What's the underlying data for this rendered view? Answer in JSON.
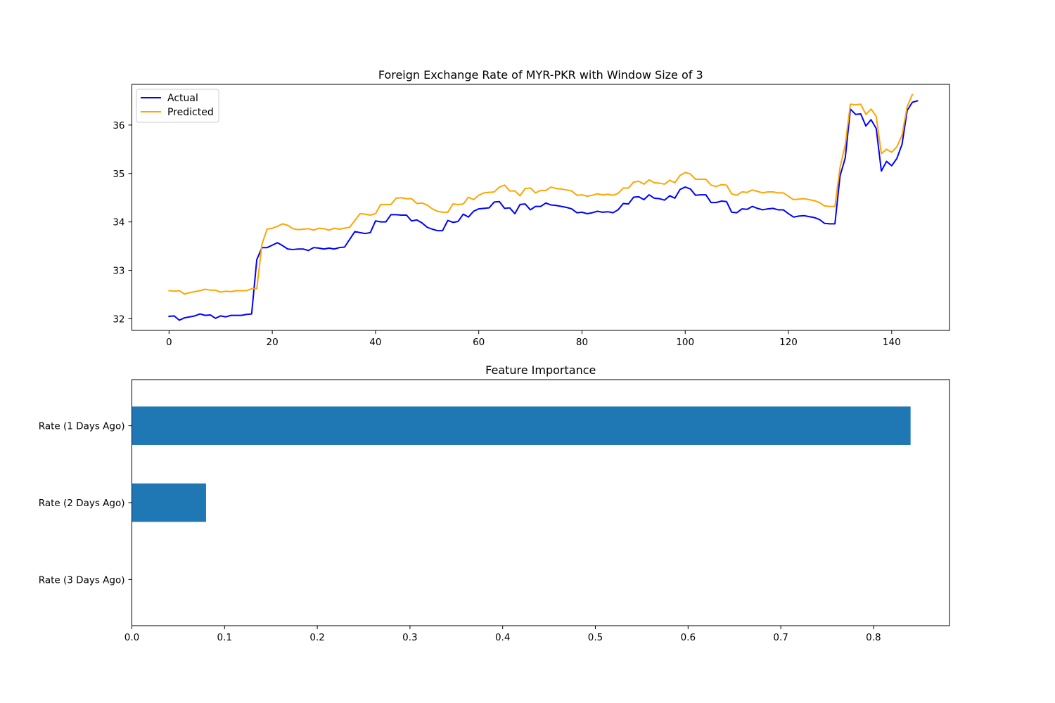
{
  "chart_data": [
    {
      "type": "line",
      "title": "Foreign Exchange Rate of MYR-PKR with Window Size of 3",
      "xlabel": "",
      "ylabel": "",
      "xlim": [
        -7.2,
        151.2
      ],
      "ylim": [
        31.76,
        36.84
      ],
      "xticks": [
        0,
        20,
        40,
        60,
        80,
        100,
        120,
        140
      ],
      "yticks": [
        32,
        33,
        34,
        35,
        36
      ],
      "grid": false,
      "legend_position": "upper left",
      "series": [
        {
          "name": "Actual",
          "color": "#0000ff",
          "values": [
            32.05,
            32.06,
            31.97,
            32.02,
            32.04,
            32.06,
            32.1,
            32.07,
            32.08,
            32.01,
            32.06,
            32.04,
            32.07,
            32.07,
            32.07,
            32.09,
            32.1,
            33.22,
            33.47,
            33.47,
            33.52,
            33.57,
            33.51,
            33.44,
            33.43,
            33.44,
            33.44,
            33.41,
            33.47,
            33.46,
            33.44,
            33.46,
            33.44,
            33.47,
            33.48,
            33.64,
            33.8,
            33.78,
            33.76,
            33.78,
            34.02,
            34.0,
            34.0,
            34.15,
            34.15,
            34.14,
            34.14,
            34.02,
            34.04,
            33.98,
            33.89,
            33.85,
            33.82,
            33.82,
            34.03,
            33.99,
            34.01,
            34.16,
            34.1,
            34.22,
            34.27,
            34.28,
            34.29,
            34.41,
            34.42,
            34.28,
            34.29,
            34.17,
            34.36,
            34.37,
            34.25,
            34.32,
            34.32,
            34.39,
            34.35,
            34.34,
            34.32,
            34.3,
            34.27,
            34.19,
            34.2,
            34.17,
            34.19,
            34.22,
            34.2,
            34.21,
            34.19,
            34.25,
            34.38,
            34.37,
            34.51,
            34.52,
            34.46,
            34.56,
            34.49,
            34.48,
            34.45,
            34.54,
            34.49,
            34.67,
            34.72,
            34.68,
            34.55,
            34.56,
            34.56,
            34.4,
            34.4,
            34.43,
            34.42,
            34.2,
            34.19,
            34.27,
            34.26,
            34.32,
            34.28,
            34.25,
            34.27,
            34.28,
            34.25,
            34.25,
            34.17,
            34.1,
            34.12,
            34.13,
            34.11,
            34.09,
            34.05,
            33.97,
            33.96,
            33.96,
            34.95,
            35.32,
            36.33,
            36.22,
            36.23,
            35.98,
            36.11,
            35.93,
            35.05,
            35.25,
            35.16,
            35.31,
            35.6,
            36.3,
            36.47,
            36.5
          ]
        },
        {
          "name": "Predicted",
          "color": "#ffa500",
          "values": [
            32.58,
            32.57,
            32.58,
            32.51,
            32.54,
            32.56,
            32.58,
            32.61,
            32.59,
            32.59,
            32.55,
            32.57,
            32.56,
            32.58,
            32.58,
            32.58,
            32.62,
            32.62,
            33.54,
            33.85,
            33.87,
            33.91,
            33.96,
            33.93,
            33.86,
            33.84,
            33.85,
            33.86,
            33.83,
            33.87,
            33.86,
            33.83,
            33.87,
            33.85,
            33.87,
            33.89,
            34.03,
            34.17,
            34.16,
            34.14,
            34.17,
            34.36,
            34.36,
            34.36,
            34.49,
            34.5,
            34.48,
            34.48,
            34.38,
            34.39,
            34.35,
            34.27,
            34.22,
            34.2,
            34.2,
            34.37,
            34.36,
            34.37,
            34.51,
            34.46,
            34.55,
            34.6,
            34.61,
            34.62,
            34.72,
            34.76,
            34.64,
            34.64,
            34.54,
            34.69,
            34.7,
            34.6,
            34.65,
            34.65,
            34.72,
            34.69,
            34.68,
            34.66,
            34.64,
            34.55,
            34.56,
            34.53,
            34.55,
            34.58,
            34.56,
            34.57,
            34.55,
            34.59,
            34.7,
            34.7,
            34.82,
            34.84,
            34.78,
            34.87,
            34.81,
            34.8,
            34.78,
            34.86,
            34.81,
            34.96,
            35.02,
            34.99,
            34.88,
            34.88,
            34.88,
            34.76,
            34.73,
            34.77,
            34.76,
            34.58,
            34.55,
            34.62,
            34.61,
            34.66,
            34.63,
            34.6,
            34.62,
            34.62,
            34.6,
            34.6,
            34.53,
            34.46,
            34.47,
            34.48,
            34.46,
            34.44,
            34.4,
            34.33,
            34.32,
            34.32,
            35.13,
            35.59,
            36.43,
            36.42,
            36.43,
            36.22,
            36.33,
            36.18,
            35.41,
            35.5,
            35.44,
            35.55,
            35.79,
            36.38,
            36.63
          ]
        }
      ]
    },
    {
      "type": "bar",
      "orientation": "horizontal",
      "title": "Feature Importance",
      "xlabel": "",
      "ylabel": "",
      "categories": [
        "Rate (1 Days Ago)",
        "Rate (2 Days Ago)",
        "Rate (3 Days Ago)"
      ],
      "values": [
        0.84,
        0.08,
        0.0
      ],
      "xlim": [
        0.0,
        0.882
      ],
      "xticks": [
        0.0,
        0.1,
        0.2,
        0.3,
        0.4,
        0.5,
        0.6,
        0.7,
        0.8
      ],
      "xtick_labels": [
        "0.0",
        "0.1",
        "0.2",
        "0.3",
        "0.4",
        "0.5",
        "0.6",
        "0.7",
        "0.8"
      ],
      "color": "#1f77b4",
      "grid": false
    }
  ]
}
